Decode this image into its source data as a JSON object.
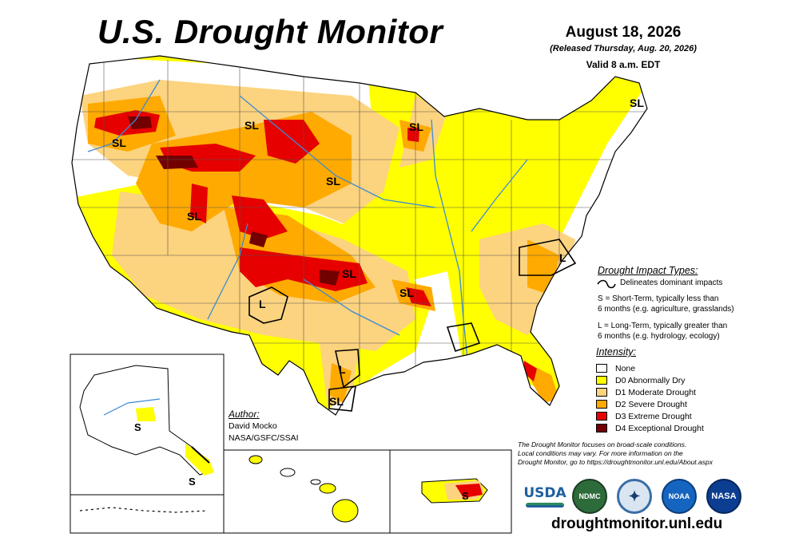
{
  "header": {
    "title": "U.S. Drought Monitor",
    "date": "August 18, 2026",
    "released": "(Released Thursday, Aug. 20, 2026)",
    "valid": "Valid 8 a.m. EDT"
  },
  "impact_types": {
    "title": "Drought Impact Types:",
    "delineates": "Delineates dominant impacts",
    "s_line1": "S = Short-Term, typically less than",
    "s_line2": "6 months (e.g. agriculture, grasslands)",
    "l_line1": "L = Long-Term, typically greater than",
    "l_line2": "6 months (e.g. hydrology, ecology)"
  },
  "intensity": {
    "title": "Intensity:",
    "levels": [
      {
        "label": "None",
        "color": "#ffffff"
      },
      {
        "label": "D0 Abnormally Dry",
        "color": "#ffff00"
      },
      {
        "label": "D1 Moderate Drought",
        "color": "#fcd37f"
      },
      {
        "label": "D2 Severe Drought",
        "color": "#ffaa00"
      },
      {
        "label": "D3 Extreme Drought",
        "color": "#e60000"
      },
      {
        "label": "D4 Exceptional Drought",
        "color": "#730000"
      }
    ]
  },
  "author": {
    "title": "Author:",
    "name": "David Mocko",
    "org": "NASA/GSFC/SSAI"
  },
  "note": {
    "line1": "The Drought Monitor focuses on broad-scale conditions.",
    "line2": "Local conditions may vary. For more information on the",
    "line3": "Drought Monitor, go to https://droughtmonitor.unl.edu/About.aspx"
  },
  "logos": {
    "usda": "USDA",
    "ndmc": "NDMC",
    "noaa": "NOAA",
    "nasa": "NASA",
    "doc_icon": "department-of-commerce-seal"
  },
  "website": "droughtmonitor.unl.edu",
  "map_labels": {
    "sl_oregon": "SL",
    "sl_montana": "SL",
    "sl_wisconsin": "SL",
    "sl_maine": "SL",
    "sl_south_dakota": "SL",
    "sl_utah": "SL",
    "sl_oklahoma": "SL",
    "sl_arkansas": "SL",
    "sl_texas_south": "SL",
    "l_new_mexico": "L",
    "l_texas": "L",
    "l_virginia": "L",
    "s_alaska": "S",
    "s_alaska_south": "S",
    "s_puerto_rico": "S"
  }
}
